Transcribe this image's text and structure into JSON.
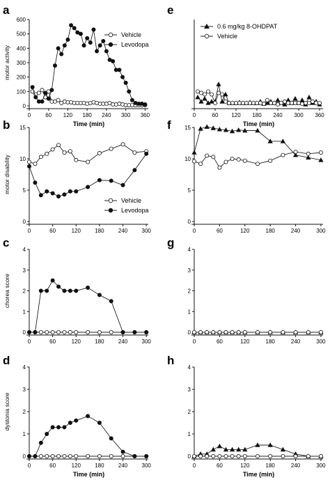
{
  "chart_data": [
    {
      "panel": "a",
      "type": "line",
      "xlabel": "Time (min)",
      "ylabel": "motor activity",
      "xlim": [
        0,
        370
      ],
      "ylim": [
        0,
        600
      ],
      "xticks": [
        0,
        60,
        120,
        180,
        240,
        300,
        360
      ],
      "yticks": [
        0,
        100,
        200,
        300,
        400,
        500,
        600
      ],
      "legend_position": "top-right",
      "series": [
        {
          "name": "Vehicle",
          "marker": "open-circle",
          "x": [
            10,
            20,
            30,
            40,
            50,
            60,
            70,
            80,
            90,
            100,
            110,
            120,
            130,
            140,
            150,
            160,
            170,
            180,
            190,
            200,
            210,
            220,
            230,
            240,
            250,
            260,
            270,
            280,
            290,
            300,
            310,
            320,
            330,
            340,
            350,
            360
          ],
          "y": [
            100,
            80,
            90,
            110,
            60,
            100,
            30,
            30,
            40,
            20,
            30,
            25,
            25,
            20,
            20,
            20,
            20,
            15,
            20,
            25,
            20,
            15,
            15,
            15,
            20,
            10,
            10,
            15,
            10,
            5,
            5,
            5,
            5,
            5,
            5,
            5
          ]
        },
        {
          "name": "Levodopa",
          "marker": "filled-circle",
          "x": [
            10,
            20,
            30,
            40,
            50,
            60,
            70,
            80,
            90,
            100,
            110,
            120,
            130,
            140,
            150,
            160,
            170,
            180,
            190,
            200,
            210,
            220,
            230,
            240,
            250,
            260,
            270,
            280,
            290,
            300,
            310,
            320,
            330,
            340,
            350,
            360
          ],
          "y": [
            130,
            60,
            30,
            30,
            90,
            50,
            110,
            280,
            400,
            360,
            420,
            460,
            560,
            540,
            510,
            500,
            420,
            470,
            440,
            530,
            380,
            420,
            450,
            380,
            320,
            310,
            250,
            250,
            200,
            160,
            100,
            40,
            20,
            15,
            15,
            10
          ]
        }
      ]
    },
    {
      "panel": "b",
      "type": "line",
      "xlabel": "",
      "ylabel": "motor disability",
      "xlim": [
        0,
        305
      ],
      "ylim": [
        0,
        15
      ],
      "xticks": [
        0,
        60,
        120,
        180,
        240,
        300
      ],
      "yticks": [
        0,
        5,
        10,
        15
      ],
      "legend_position": "bottom-right",
      "series": [
        {
          "name": "Vehicle",
          "marker": "open-circle",
          "x": [
            0,
            15,
            30,
            45,
            60,
            75,
            90,
            105,
            120,
            150,
            180,
            210,
            240,
            270,
            300
          ],
          "y": [
            9.5,
            9.2,
            10.3,
            10.8,
            11.5,
            12.2,
            11.0,
            11.2,
            9.8,
            9.5,
            10.9,
            11.6,
            12.3,
            11.0,
            11.2
          ]
        },
        {
          "name": "Levodopa",
          "marker": "filled-circle",
          "x": [
            0,
            15,
            30,
            45,
            60,
            75,
            90,
            105,
            120,
            150,
            180,
            210,
            240,
            270,
            300
          ],
          "y": [
            8.8,
            6.2,
            4.2,
            4.8,
            4.5,
            4.0,
            4.3,
            4.8,
            4.8,
            5.5,
            6.6,
            6.5,
            5.8,
            8.2,
            10.8
          ]
        }
      ]
    },
    {
      "panel": "c",
      "type": "line",
      "xlabel": "",
      "ylabel": "chorea score",
      "xlim": [
        0,
        305
      ],
      "ylim": [
        0,
        4
      ],
      "xticks": [
        0,
        60,
        120,
        180,
        240,
        300
      ],
      "yticks": [
        0,
        1,
        2,
        3,
        4
      ],
      "series": [
        {
          "name": "Vehicle",
          "marker": "open-circle",
          "x": [
            0,
            15,
            30,
            45,
            60,
            75,
            90,
            105,
            120,
            150,
            180,
            210,
            240,
            270,
            300
          ],
          "y": [
            0,
            0,
            0,
            0,
            0,
            0,
            0,
            0,
            0,
            0,
            0,
            0,
            0,
            0,
            0
          ]
        },
        {
          "name": "Levodopa",
          "marker": "filled-circle",
          "x": [
            0,
            15,
            30,
            45,
            60,
            75,
            90,
            105,
            120,
            150,
            180,
            210,
            240,
            270,
            300
          ],
          "y": [
            0,
            0,
            2.0,
            2.0,
            2.5,
            2.2,
            2.0,
            2.0,
            2.0,
            2.15,
            1.8,
            1.5,
            0,
            0,
            0
          ]
        }
      ]
    },
    {
      "panel": "d",
      "type": "line",
      "xlabel": "Time (min)",
      "ylabel": "dystonia score",
      "xlim": [
        0,
        305
      ],
      "ylim": [
        0,
        4
      ],
      "xticks": [
        0,
        60,
        120,
        180,
        240,
        300
      ],
      "yticks": [
        0,
        1,
        2,
        3,
        4
      ],
      "series": [
        {
          "name": "Vehicle",
          "marker": "open-circle",
          "x": [
            0,
            15,
            30,
            45,
            60,
            75,
            90,
            105,
            120,
            150,
            180,
            210,
            240,
            270,
            300
          ],
          "y": [
            0,
            0,
            0,
            0,
            0,
            0,
            0,
            0,
            0,
            0,
            0,
            0,
            0,
            0,
            0
          ]
        },
        {
          "name": "Levodopa",
          "marker": "filled-circle",
          "x": [
            0,
            15,
            30,
            45,
            60,
            75,
            90,
            105,
            120,
            150,
            180,
            210,
            240,
            270,
            300
          ],
          "y": [
            0,
            0,
            0.6,
            1.0,
            1.3,
            1.3,
            1.3,
            1.5,
            1.6,
            1.8,
            1.5,
            0.8,
            0.2,
            0,
            0
          ]
        }
      ]
    },
    {
      "panel": "e",
      "type": "line",
      "xlabel": "Time (min)",
      "ylabel": "",
      "xlim": [
        0,
        370
      ],
      "ylim": [
        0,
        600
      ],
      "xticks": [
        0,
        60,
        120,
        180,
        240,
        300,
        360
      ],
      "yticks": [],
      "legend_position": "top-left",
      "series": [
        {
          "name": "0.6 mg/kg 8-OHDPAT",
          "marker": "filled-triangle",
          "x": [
            10,
            20,
            30,
            40,
            50,
            60,
            70,
            80,
            90,
            100,
            110,
            120,
            130,
            140,
            150,
            160,
            170,
            180,
            190,
            200,
            210,
            220,
            230,
            240,
            250,
            260,
            270,
            280,
            290,
            300,
            310,
            320,
            330,
            340,
            350,
            360
          ],
          "y": [
            60,
            30,
            50,
            20,
            30,
            30,
            150,
            30,
            80,
            20,
            20,
            20,
            25,
            20,
            20,
            25,
            20,
            20,
            30,
            15,
            20,
            30,
            20,
            40,
            20,
            10,
            40,
            20,
            50,
            20,
            40,
            10,
            60,
            20,
            30,
            10
          ]
        },
        {
          "name": "Vehicle",
          "marker": "open-circle",
          "x": [
            10,
            20,
            30,
            40,
            50,
            60,
            70,
            80,
            90,
            100,
            110,
            120,
            130,
            140,
            150,
            160,
            170,
            180,
            190,
            200,
            210,
            220,
            230,
            240,
            250,
            260,
            270,
            280,
            290,
            300,
            310,
            320,
            330,
            340,
            350,
            360
          ],
          "y": [
            100,
            90,
            80,
            100,
            80,
            20,
            90,
            80,
            30,
            20,
            20,
            20,
            20,
            20,
            20,
            20,
            20,
            20,
            20,
            15,
            40,
            20,
            20,
            10,
            20,
            30,
            20,
            20,
            20,
            20,
            15,
            20,
            20,
            30,
            20,
            20
          ]
        }
      ]
    },
    {
      "panel": "f",
      "type": "line",
      "xlabel": "",
      "ylabel": "",
      "xlim": [
        0,
        305
      ],
      "ylim": [
        0,
        15
      ],
      "xticks": [
        0,
        60,
        120,
        180,
        240,
        300
      ],
      "yticks": [
        0,
        5,
        10,
        15
      ],
      "series": [
        {
          "name": "0.6 mg/kg 8-OHDPAT",
          "marker": "filled-triangle",
          "x": [
            0,
            15,
            30,
            45,
            60,
            75,
            90,
            105,
            120,
            150,
            180,
            210,
            240,
            270,
            300
          ],
          "y": [
            11.0,
            14.8,
            15.1,
            14.9,
            14.7,
            14.6,
            14.4,
            14.6,
            14.5,
            14.5,
            12.8,
            12.8,
            10.6,
            10.2,
            9.8
          ]
        },
        {
          "name": "Vehicle",
          "marker": "open-circle",
          "x": [
            0,
            15,
            30,
            45,
            60,
            75,
            90,
            105,
            120,
            150,
            180,
            210,
            240,
            270,
            300
          ],
          "y": [
            9.6,
            9.2,
            10.5,
            10.3,
            8.6,
            9.5,
            10.0,
            9.9,
            9.7,
            9.2,
            9.7,
            10.6,
            11.1,
            10.8,
            11.0
          ]
        }
      ]
    },
    {
      "panel": "g",
      "type": "line",
      "xlabel": "",
      "ylabel": "",
      "xlim": [
        0,
        305
      ],
      "ylim": [
        0,
        4
      ],
      "xticks": [
        0,
        60,
        120,
        180,
        240,
        300
      ],
      "yticks": [
        0,
        1,
        2,
        3,
        4
      ],
      "series": [
        {
          "name": "0.6 mg/kg 8-OHDPAT",
          "marker": "filled-triangle",
          "x": [
            0,
            15,
            30,
            45,
            60,
            75,
            90,
            105,
            120,
            150,
            180,
            210,
            240,
            270,
            300
          ],
          "y": [
            0,
            0,
            0,
            0,
            0,
            0,
            0,
            0,
            0,
            0,
            0,
            0,
            0,
            0,
            0
          ]
        },
        {
          "name": "Vehicle",
          "marker": "open-circle",
          "x": [
            0,
            15,
            30,
            45,
            60,
            75,
            90,
            105,
            120,
            150,
            180,
            210,
            240,
            270,
            300
          ],
          "y": [
            0,
            0,
            0,
            0,
            0,
            0,
            0,
            0,
            0,
            0,
            0,
            0,
            0,
            0,
            0
          ]
        }
      ]
    },
    {
      "panel": "h",
      "type": "line",
      "xlabel": "Time (min)",
      "ylabel": "",
      "xlim": [
        0,
        305
      ],
      "ylim": [
        0,
        4
      ],
      "xticks": [
        0,
        60,
        120,
        180,
        240,
        300
      ],
      "yticks": [
        0,
        1,
        2,
        3,
        4
      ],
      "series": [
        {
          "name": "0.6 mg/kg 8-OHDPAT",
          "marker": "filled-triangle",
          "x": [
            0,
            15,
            30,
            45,
            60,
            75,
            90,
            105,
            120,
            150,
            180,
            210,
            240,
            270,
            300
          ],
          "y": [
            0,
            0.1,
            0.1,
            0.3,
            0.45,
            0.3,
            0.3,
            0.3,
            0.3,
            0.5,
            0.5,
            0.3,
            0.1,
            0,
            0
          ]
        },
        {
          "name": "Vehicle",
          "marker": "open-circle",
          "x": [
            0,
            15,
            30,
            45,
            60,
            75,
            90,
            105,
            120,
            150,
            180,
            210,
            240,
            270,
            300
          ],
          "y": [
            0,
            0,
            0,
            0,
            0,
            0,
            0,
            0,
            0,
            0,
            0,
            0,
            0,
            0,
            0
          ]
        }
      ]
    }
  ]
}
